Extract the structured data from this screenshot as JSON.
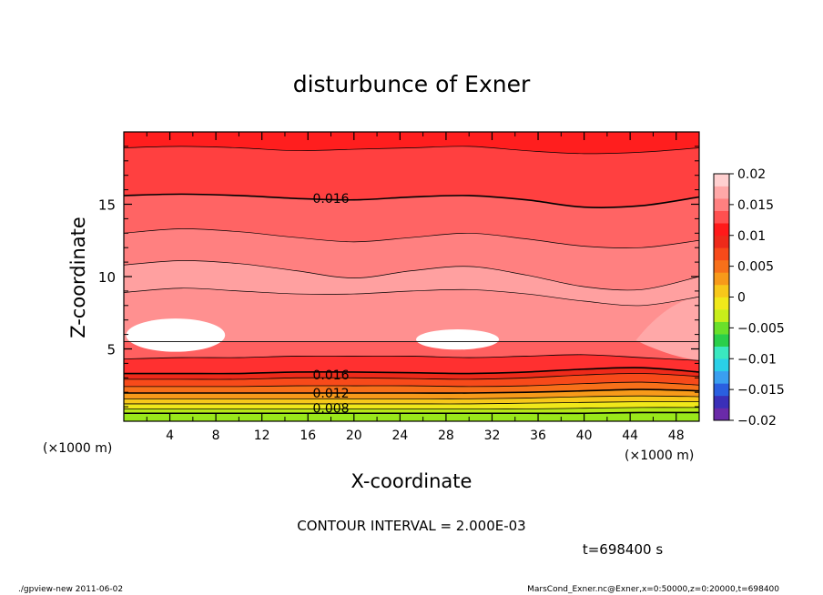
{
  "chart_data": {
    "type": "heatmap",
    "title": "disturbunce of Exner",
    "xlabel": "X-coordinate",
    "ylabel": "Z-coordinate",
    "x_unit_left": "(×1000 m)",
    "x_unit_right": "(×1000 m)",
    "xlim": [
      0,
      50
    ],
    "ylim": [
      0,
      20
    ],
    "x_ticks": [
      4,
      8,
      12,
      16,
      20,
      24,
      28,
      32,
      36,
      40,
      44,
      48
    ],
    "y_ticks": [
      5,
      10,
      15
    ],
    "contour_interval_text": "CONTOUR INTERVAL = 2.000E-03",
    "contour_interval": 0.002,
    "time_text": "t=698400 s",
    "colorbar": {
      "ticks": [
        0.02,
        0.015,
        0.01,
        0.005,
        0,
        -0.005,
        -0.01,
        -0.015,
        -0.02
      ],
      "tick_labels": [
        "0.02",
        "0.015",
        "0.01",
        "0.005",
        "0",
        "−0.005",
        "−0.01",
        "−0.015",
        "−0.02"
      ],
      "range": [
        -0.02,
        0.02
      ],
      "level_colors": [
        "#6a2aa8",
        "#3a2fb8",
        "#2a5fe0",
        "#3a9ff0",
        "#2ad0e8",
        "#3ae8c0",
        "#2acf4a",
        "#6ae02a",
        "#c8ee1a",
        "#f0e81a",
        "#f7c81a",
        "#f79a1a",
        "#f7701a",
        "#f74a1a",
        "#ee2a1a",
        "#ff1a1a",
        "#ff5050",
        "#ff8080",
        "#ffa8a8",
        "#ffd0d0"
      ]
    },
    "contour_labels": [
      {
        "value": "0.016",
        "x": 18,
        "z": 15.4
      },
      {
        "value": "0.016",
        "x": 18,
        "z": 3.2
      },
      {
        "value": "0.012",
        "x": 18,
        "z": 1.95
      },
      {
        "value": "0.008",
        "x": 18,
        "z": 0.9
      }
    ],
    "bands": [
      {
        "level": 0.008,
        "color": "#b8e818",
        "z": [
          0.55,
          0.55,
          0.55,
          0.55,
          0.55,
          0.55,
          0.55,
          0.55,
          0.55,
          0.6,
          0.6
        ]
      },
      {
        "level": 0.009,
        "color": "#f0e81a",
        "z": [
          0.85,
          0.85,
          0.85,
          0.85,
          0.85,
          0.85,
          0.85,
          0.85,
          0.9,
          0.95,
          0.95
        ]
      },
      {
        "level": 0.01,
        "color": "#f7c81a",
        "z": [
          1.2,
          1.2,
          1.2,
          1.2,
          1.2,
          1.2,
          1.2,
          1.25,
          1.3,
          1.35,
          1.35
        ]
      },
      {
        "level": 0.011,
        "color": "#f79a1a",
        "z": [
          1.55,
          1.55,
          1.55,
          1.55,
          1.55,
          1.55,
          1.55,
          1.6,
          1.7,
          1.75,
          1.7
        ]
      },
      {
        "level": 0.012,
        "color": "#f7701a",
        "z": [
          1.95,
          1.95,
          1.95,
          1.95,
          1.95,
          1.95,
          1.95,
          2.0,
          2.1,
          2.2,
          2.1
        ]
      },
      {
        "level": 0.013,
        "color": "#f74a1a",
        "z": [
          2.4,
          2.4,
          2.4,
          2.45,
          2.45,
          2.45,
          2.4,
          2.45,
          2.6,
          2.7,
          2.5
        ]
      },
      {
        "level": 0.015,
        "color": "#ee2a1a",
        "z": [
          2.9,
          2.9,
          2.9,
          3.0,
          3.0,
          2.95,
          2.9,
          3.0,
          3.2,
          3.3,
          3.1
        ]
      },
      {
        "level": 0.016,
        "color": "#ff3030",
        "z": [
          3.3,
          3.3,
          3.3,
          3.4,
          3.4,
          3.35,
          3.3,
          3.4,
          3.6,
          3.7,
          3.4
        ]
      },
      {
        "level": 0.017,
        "color": "#ff6060",
        "z": [
          4.3,
          4.4,
          4.4,
          4.5,
          4.5,
          4.5,
          4.4,
          4.5,
          4.6,
          4.4,
          4.2
        ]
      },
      {
        "level": 0.018,
        "color": "#ff9090",
        "z": [
          5.5,
          5.5,
          5.5,
          5.5,
          5.5,
          5.5,
          5.5,
          5.5,
          5.5,
          5.5,
          5.5
        ]
      },
      {
        "level": 0.019,
        "color": "#ffffff",
        "blobs": [
          {
            "cx": 4.5,
            "cz": 5.95,
            "rx": 4.3,
            "rz": 1.15
          },
          {
            "cx": 29.0,
            "cz": 5.65,
            "rx": 3.6,
            "rz": 0.7
          }
        ]
      }
    ],
    "upper_bands": [
      {
        "color": "#ffa0a0",
        "z": [
          8.9,
          9.2,
          9.0,
          8.8,
          8.8,
          9.0,
          9.1,
          8.8,
          8.3,
          8.0,
          8.6
        ]
      },
      {
        "color": "#ff8080",
        "z": [
          10.8,
          11.1,
          10.9,
          10.4,
          9.9,
          10.4,
          10.7,
          10.1,
          9.3,
          9.1,
          10.0
        ]
      },
      {
        "color": "#ff6464",
        "z": [
          13.0,
          13.3,
          13.1,
          12.7,
          12.4,
          12.7,
          13.0,
          12.6,
          12.1,
          12.0,
          12.5
        ]
      },
      {
        "color": "#ff4040",
        "z": [
          15.6,
          15.7,
          15.6,
          15.4,
          15.3,
          15.5,
          15.6,
          15.3,
          14.8,
          14.9,
          15.5
        ]
      },
      {
        "color": "#ff1e1e",
        "z": [
          18.9,
          19.0,
          18.9,
          18.7,
          18.8,
          18.9,
          19.0,
          18.7,
          18.5,
          18.6,
          18.9
        ]
      },
      {
        "color": "#ee3018",
        "z": [
          20,
          20,
          20,
          20,
          20,
          20,
          20,
          20,
          20,
          20,
          20
        ]
      }
    ],
    "band_x": [
      0,
      5,
      10,
      15,
      20,
      25,
      30,
      35,
      40,
      45,
      50
    ],
    "right_wedge": {
      "color": "#ffa8a8"
    }
  },
  "footer": {
    "left": "./gpview-new  2011-06-02",
    "right": "MarsCond_Exner.nc@Exner,x=0:50000,z=0:20000,t=698400"
  }
}
